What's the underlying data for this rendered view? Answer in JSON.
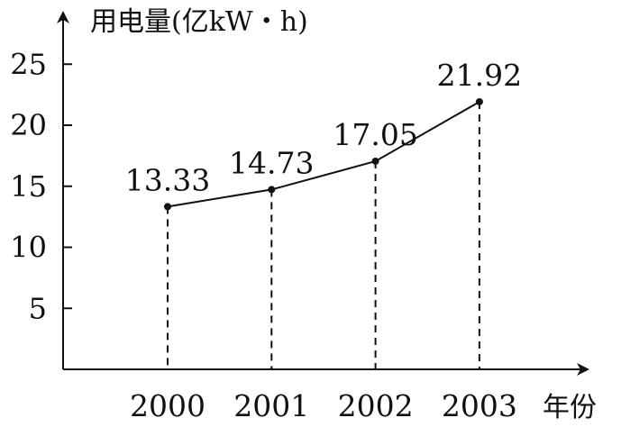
{
  "chart_data": {
    "type": "line",
    "title": "",
    "ylabel": "用电量(亿kW・h)",
    "xlabel": "年份",
    "categories": [
      "2000",
      "2001",
      "2002",
      "2003"
    ],
    "values": [
      13.33,
      14.73,
      17.05,
      21.92
    ],
    "data_labels": [
      "13.33",
      "14.73",
      "17.05",
      "21.92"
    ],
    "yticks": [
      "5",
      "10",
      "15",
      "20",
      "25"
    ],
    "ylim": [
      0,
      28
    ],
    "grid": false,
    "legend": "none",
    "colors": {
      "line": "#111111",
      "axis": "#111111",
      "drop_lines": "#111111"
    }
  }
}
